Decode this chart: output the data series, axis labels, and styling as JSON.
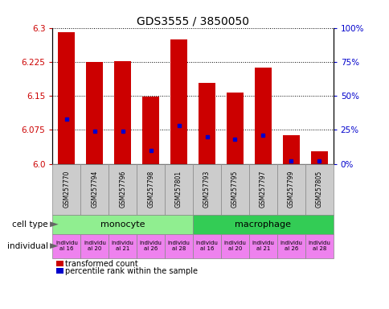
{
  "title": "GDS3555 / 3850050",
  "samples": [
    "GSM257770",
    "GSM257794",
    "GSM257796",
    "GSM257798",
    "GSM257801",
    "GSM257793",
    "GSM257795",
    "GSM257797",
    "GSM257799",
    "GSM257805"
  ],
  "transformed_counts": [
    6.29,
    6.225,
    6.226,
    6.148,
    6.275,
    6.178,
    6.158,
    6.212,
    6.063,
    6.028
  ],
  "percentile_ranks": [
    33,
    24,
    24,
    10,
    28,
    20,
    18,
    21,
    2,
    2
  ],
  "y_min": 6.0,
  "y_max": 6.3,
  "y_ticks_left": [
    6.0,
    6.075,
    6.15,
    6.225,
    6.3
  ],
  "y_ticks_right_labels": [
    "0%",
    "25%",
    "50%",
    "75%",
    "100%"
  ],
  "cell_types": [
    {
      "label": "monocyte",
      "start": 0,
      "end": 5,
      "color": "#90EE90"
    },
    {
      "label": "macrophage",
      "start": 5,
      "end": 10,
      "color": "#33CC55"
    }
  ],
  "individuals": [
    {
      "label": "individu\nal 16"
    },
    {
      "label": "individu\nal 20"
    },
    {
      "label": "individu\nal 21"
    },
    {
      "label": "individu\nal 26"
    },
    {
      "label": "individu\nal 28"
    },
    {
      "label": "individu\nal 16"
    },
    {
      "label": "individu\nal 20"
    },
    {
      "label": "individu\nal 21"
    },
    {
      "label": "individu\nal 26"
    },
    {
      "label": "individu\nal 28"
    }
  ],
  "bar_color": "#CC0000",
  "blue_color": "#0000CC",
  "bar_width": 0.6,
  "legend_items": [
    {
      "label": "transformed count",
      "color": "#CC0000"
    },
    {
      "label": "percentile rank within the sample",
      "color": "#0000CC"
    }
  ],
  "xlabel_cell_type": "cell type",
  "xlabel_individual": "individual",
  "tick_label_color_left": "#CC0000",
  "tick_label_color_right": "#0000CC",
  "title_fontsize": 10,
  "ind_color": "#EE82EE"
}
